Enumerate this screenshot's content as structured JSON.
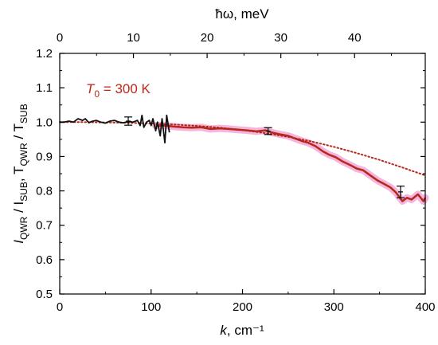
{
  "chart_data": {
    "type": "line",
    "xlabel_main": "k",
    "xlabel_unit": ", cm⁻¹",
    "ylabel_parts": [
      "I",
      "QWR",
      " / I",
      "SUB",
      ", T",
      "QWR",
      " / T",
      "SUB"
    ],
    "top_xlabel": "ħω, meV",
    "xlim": [
      0,
      400
    ],
    "ylim": [
      0.5,
      1.2
    ],
    "x_ticks": [
      0,
      100,
      200,
      300,
      400
    ],
    "y_ticks": [
      0.5,
      0.6,
      0.7,
      0.8,
      0.9,
      1.0,
      1.1,
      1.2
    ],
    "y_tick_labels": [
      "0.5",
      "0.6",
      "0.7",
      "0.8",
      "0.9",
      "1.0",
      "1.1",
      "1.2"
    ],
    "top_ticks": [
      10,
      20,
      30,
      40
    ],
    "top_tick_cm": [
      80.655,
      161.31,
      241.965,
      322.62
    ],
    "grid": false,
    "annotation": {
      "main": "T",
      "sub": "0",
      "rest": " = 300 K"
    },
    "colors": {
      "black_series": "#111111",
      "red_series": "#b5281c",
      "red_band": "#f5a8d6",
      "dotted": "#b5281c",
      "annotation": "#c0261a"
    },
    "series": [
      {
        "style": "solid-black",
        "x": [
          0,
          5,
          10,
          15,
          20,
          25,
          28,
          32,
          35,
          40,
          45,
          50,
          55,
          60,
          65,
          70,
          75,
          80,
          85,
          88,
          90,
          92,
          95,
          98,
          100,
          102,
          105,
          107,
          110,
          112,
          115,
          117,
          120
        ],
        "y": [
          1.0,
          1.0,
          1.003,
          1.0,
          1.01,
          1.005,
          1.01,
          0.998,
          1.002,
          1.005,
          1.0,
          0.997,
          1.003,
          1.005,
          1.0,
          0.998,
          1.002,
          1.0,
          1.005,
          0.99,
          1.02,
          0.985,
          1.0,
          1.005,
          0.99,
          1.01,
          0.975,
          1.0,
          0.96,
          1.01,
          0.94,
          1.02,
          0.97
        ]
      },
      {
        "style": "solid-red-with-band",
        "x": [
          105,
          115,
          125,
          135,
          145,
          155,
          165,
          175,
          185,
          195,
          205,
          215,
          225,
          232,
          240,
          250,
          258,
          265,
          272,
          280,
          288,
          295,
          302,
          310,
          318,
          325,
          332,
          340,
          348,
          355,
          362,
          368,
          375,
          380,
          385,
          392,
          398,
          400
        ],
        "y": [
          0.99,
          0.99,
          0.987,
          0.985,
          0.984,
          0.985,
          0.98,
          0.982,
          0.98,
          0.978,
          0.976,
          0.973,
          0.976,
          0.97,
          0.965,
          0.96,
          0.952,
          0.945,
          0.94,
          0.93,
          0.915,
          0.905,
          0.898,
          0.885,
          0.875,
          0.865,
          0.86,
          0.845,
          0.83,
          0.82,
          0.81,
          0.795,
          0.77,
          0.78,
          0.775,
          0.79,
          0.77,
          0.78
        ]
      },
      {
        "style": "dotted-red",
        "x": [
          0,
          25,
          50,
          75,
          100,
          125,
          150,
          175,
          200,
          225,
          250,
          275,
          300,
          325,
          350,
          375,
          400
        ],
        "y": [
          1.0,
          1.0,
          0.999,
          0.998,
          0.996,
          0.993,
          0.989,
          0.984,
          0.977,
          0.968,
          0.957,
          0.944,
          0.928,
          0.91,
          0.89,
          0.868,
          0.845
        ]
      }
    ],
    "error_bars": [
      {
        "x": 75,
        "y": 1.003,
        "err": 0.012
      },
      {
        "x": 228,
        "y": 0.974,
        "err": 0.01
      },
      {
        "x": 373,
        "y": 0.797,
        "err": 0.017
      }
    ]
  }
}
